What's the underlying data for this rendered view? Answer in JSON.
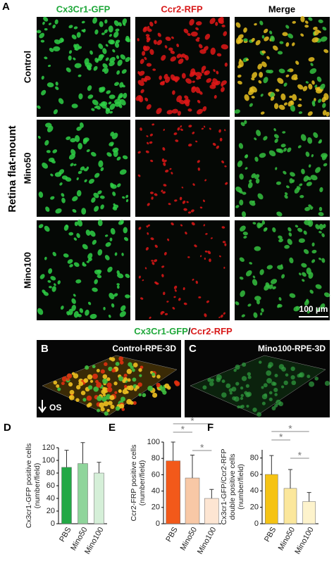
{
  "panels": {
    "a": {
      "label": "A",
      "columns": [
        "Cx3Cr1-GFP",
        "Ccr2-RFP",
        "Merge"
      ],
      "rows": [
        "Control",
        "Mino50",
        "Mino100"
      ],
      "side_label": "Retina flat-mount",
      "scale_bar": "100 µm"
    },
    "legend": {
      "green": "Cx3Cr1-GFP",
      "sep": "/",
      "red": "Ccr2-RFP"
    },
    "b": {
      "label": "B",
      "title": "Control-RPE-3D",
      "orientation": "OS"
    },
    "c": {
      "label": "C",
      "title": "Mino100-RPE-3D"
    }
  },
  "chart_data": [
    {
      "type": "bar",
      "label": "D",
      "ylabel": [
        "Cx3cr1-GFP positive cells",
        "(number/field)"
      ],
      "categories": [
        "PBS",
        "Mino50",
        "Mino100"
      ],
      "values": [
        89,
        95,
        80
      ],
      "errors": [
        27,
        33,
        17
      ],
      "colors": [
        "#22a845",
        "#8fd59b",
        "#d5efd8"
      ],
      "ylim": [
        0,
        120
      ],
      "yticks": [
        0,
        20,
        40,
        60,
        80,
        100,
        120
      ],
      "significance": []
    },
    {
      "type": "bar",
      "label": "E",
      "ylabel": [
        "Ccr2-FRP positive cells",
        "(number/field)"
      ],
      "categories": [
        "PBS",
        "Mino50",
        "Mino100"
      ],
      "values": [
        77,
        56,
        31
      ],
      "errors": [
        23,
        28,
        11
      ],
      "colors": [
        "#f2591a",
        "#f8c8a6",
        "#fde5d2"
      ],
      "ylim": [
        0,
        100
      ],
      "yticks": [
        0,
        20,
        40,
        60,
        80,
        100
      ],
      "significance": [
        {
          "pair": [
            "PBS",
            "Mino100"
          ],
          "label": "*"
        },
        {
          "pair": [
            "PBS",
            "Mino50"
          ],
          "label": "*"
        },
        {
          "pair": [
            "Mino50",
            "Mino100"
          ],
          "label": "*"
        }
      ]
    },
    {
      "type": "bar",
      "label": "F",
      "ylabel": [
        "Cx3cr1-GFP/Ccr2-RFP",
        "double positive cells",
        "(number/field)"
      ],
      "categories": [
        "PBS",
        "Mino50",
        "Mino100"
      ],
      "values": [
        60,
        43,
        27
      ],
      "errors": [
        23,
        23,
        11
      ],
      "colors": [
        "#f5c314",
        "#fbe79c",
        "#fdf3cc"
      ],
      "ylim": [
        0,
        90
      ],
      "yticks": [
        0,
        20,
        40,
        60,
        80
      ],
      "significance": [
        {
          "pair": [
            "PBS",
            "Mino100"
          ],
          "label": "*"
        },
        {
          "pair": [
            "PBS",
            "Mino50"
          ],
          "label": "*"
        },
        {
          "pair": [
            "Mino50",
            "Mino100"
          ],
          "label": "*"
        }
      ]
    }
  ]
}
